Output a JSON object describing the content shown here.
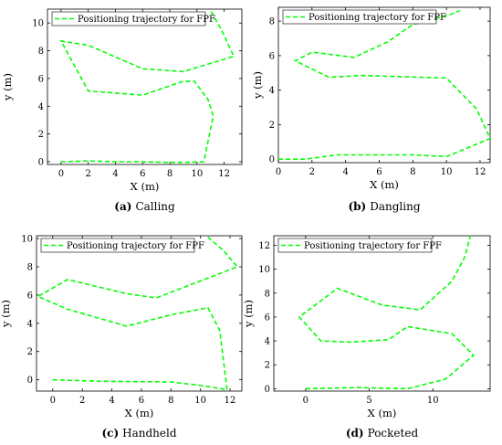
{
  "chart_data": [
    {
      "id": "a",
      "type": "line",
      "caption_letter": "(a)",
      "caption_text": "Calling",
      "xlabel": "X (m)",
      "ylabel": "y (m)",
      "xlim": [
        -1,
        13.3
      ],
      "ylim": [
        -0.2,
        11
      ],
      "xticks": [
        0,
        2,
        4,
        6,
        8,
        10,
        12
      ],
      "yticks": [
        0,
        2,
        4,
        6,
        8,
        10
      ],
      "legend": "top-left",
      "grid": false,
      "series": [
        {
          "name": "Positioning trajectory for FPF",
          "color": "#00ff00",
          "x": [
            0,
            2,
            4,
            6,
            8,
            9,
            10.5,
            11.2,
            10.8,
            9.8,
            9,
            6,
            2,
            0,
            2,
            6,
            9,
            12.7,
            11.8,
            11
          ],
          "y": [
            0,
            0.05,
            0,
            0,
            -0.05,
            -0.05,
            0,
            3.3,
            4.5,
            5.8,
            5.8,
            4.8,
            5.1,
            8.7,
            8.4,
            6.7,
            6.5,
            7.6,
            9.5,
            10.9
          ]
        }
      ]
    },
    {
      "id": "b",
      "type": "line",
      "caption_letter": "(b)",
      "caption_text": "Dangling",
      "xlabel": "X (m)",
      "ylabel": "y (m)",
      "xlim": [
        0,
        12.6
      ],
      "ylim": [
        -0.2,
        8.8
      ],
      "xticks": [
        0,
        2,
        4,
        6,
        8,
        10,
        12
      ],
      "yticks": [
        0,
        2,
        4,
        6,
        8
      ],
      "legend": "top-left",
      "grid": false,
      "series": [
        {
          "name": "Positioning trajectory for FPF",
          "color": "#00ff00",
          "x": [
            0,
            1.6,
            3.5,
            8,
            10,
            12.6,
            11.8,
            10,
            5,
            3,
            1,
            2,
            4.5,
            6.5,
            8,
            10,
            10.8
          ],
          "y": [
            0,
            0,
            0.25,
            0.25,
            0.15,
            1.2,
            2.9,
            4.7,
            4.85,
            4.75,
            5.7,
            6.2,
            5.9,
            6.8,
            7.8,
            8.3,
            8.6
          ]
        }
      ]
    },
    {
      "id": "c",
      "type": "line",
      "caption_letter": "(c)",
      "caption_text": "Handheld",
      "xlabel": "X (m)",
      "ylabel": "y (m)",
      "xlim": [
        -1.1,
        12.8
      ],
      "ylim": [
        -0.8,
        10.2
      ],
      "xticks": [
        0,
        2,
        4,
        6,
        8,
        10,
        12
      ],
      "yticks": [
        0,
        2,
        4,
        6,
        8,
        10
      ],
      "legend": "top-left",
      "grid": false,
      "series": [
        {
          "name": "Positioning trajectory for FPF",
          "color": "#00ff00",
          "x": [
            0,
            3,
            8,
            10,
            11.5,
            11.8,
            11.3,
            10.5,
            8,
            5,
            1,
            -1,
            1,
            5,
            7,
            12.5,
            11.5,
            10.5
          ],
          "y": [
            0,
            -0.1,
            -0.15,
            -0.4,
            -0.65,
            -0.7,
            3.5,
            5.1,
            4.6,
            3.8,
            5,
            5.9,
            7.1,
            6.1,
            5.8,
            8,
            9.2,
            10.1
          ]
        }
      ]
    },
    {
      "id": "d",
      "type": "line",
      "caption_letter": "(d)",
      "caption_text": "Pocketed",
      "xlabel": "X (m)",
      "ylabel": "y (m)",
      "xlim": [
        -2.5,
        14.5
      ],
      "ylim": [
        -0.2,
        12.8
      ],
      "xticks": [
        0,
        5,
        10
      ],
      "yticks": [
        0,
        2,
        4,
        6,
        8,
        10,
        12
      ],
      "legend": "top-left",
      "grid": false,
      "series": [
        {
          "name": "Positioning trajectory for FPF",
          "color": "#00ff00",
          "x": [
            0,
            4,
            8,
            11,
            13.2,
            11.5,
            8,
            6.5,
            3.5,
            1.2,
            -0.5,
            2.5,
            6,
            9,
            11.5,
            12.5,
            13
          ],
          "y": [
            0,
            0.1,
            0,
            0.8,
            2.8,
            4.6,
            5.2,
            4.1,
            3.9,
            4.0,
            6.0,
            8.4,
            7.0,
            6.6,
            9.0,
            11.0,
            13
          ]
        }
      ]
    }
  ]
}
